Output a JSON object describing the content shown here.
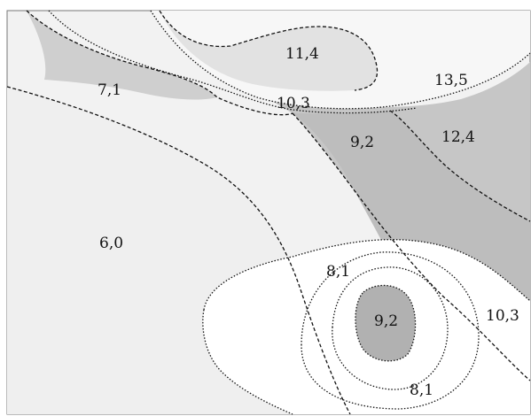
{
  "map": {
    "zone_labels": [
      {
        "id": "label-11-4",
        "text": "11,4"
      },
      {
        "id": "label-13-5",
        "text": "13,5"
      },
      {
        "id": "label-7-1",
        "text": "7,1"
      },
      {
        "id": "label-10-3-top",
        "text": "10,3"
      },
      {
        "id": "label-9-2-mid",
        "text": "9,2"
      },
      {
        "id": "label-12-4",
        "text": "12,4"
      },
      {
        "id": "label-6-0",
        "text": "6,0"
      },
      {
        "id": "label-8-1-upper",
        "text": "8,1"
      },
      {
        "id": "label-9-2-center",
        "text": "9,2"
      },
      {
        "id": "label-10-3-right",
        "text": "10,3"
      },
      {
        "id": "label-8-1-lower",
        "text": "8,1"
      }
    ],
    "colors": {
      "background": "#ffffff",
      "light_zone": "#ececec",
      "pale_zone": "#f6f6f6",
      "mid_zone": "#c8c8c8",
      "dark_zone": "#b3b3b3",
      "line": "#111111"
    }
  }
}
